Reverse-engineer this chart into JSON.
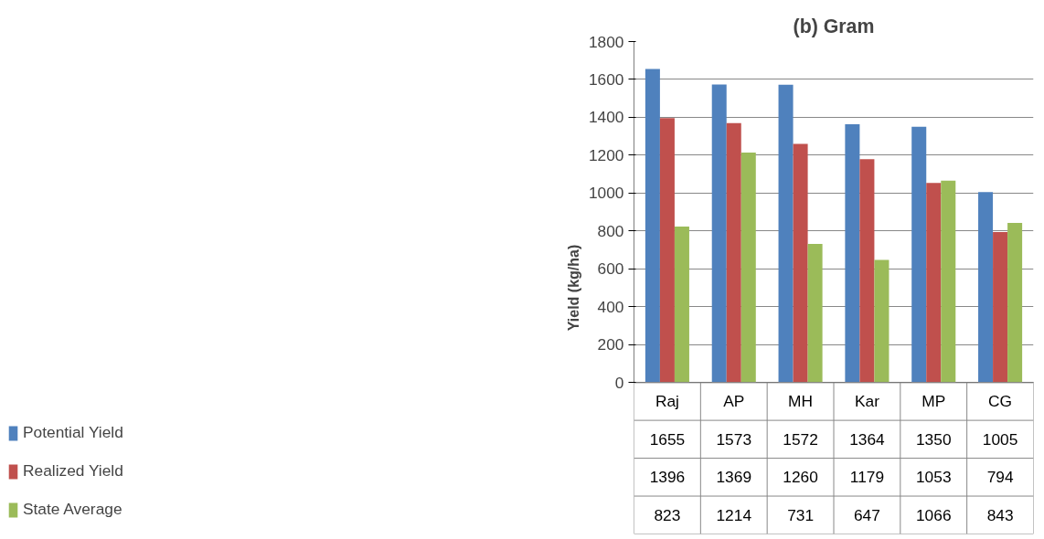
{
  "chart_data": {
    "type": "bar",
    "title": "(b) Gram",
    "ylabel": "Yield (kg/ha)",
    "categories": [
      "Raj",
      "AP",
      "MH",
      "Kar",
      "MP",
      "CG"
    ],
    "series": [
      {
        "name": "Potential Yield",
        "color": "#4f81bd",
        "values": [
          1655,
          1573,
          1572,
          1364,
          1350,
          1005
        ]
      },
      {
        "name": "Realized Yield",
        "color": "#c0504d",
        "values": [
          1396,
          1369,
          1260,
          1179,
          1053,
          794
        ]
      },
      {
        "name": "State Average",
        "color": "#9bbb59",
        "values": [
          823,
          1214,
          731,
          647,
          1066,
          843
        ]
      }
    ],
    "ylim": [
      0,
      1800
    ],
    "yticks": [
      0,
      200,
      400,
      600,
      800,
      1000,
      1200,
      1400,
      1600,
      1800
    ],
    "grid": "y",
    "legend": "bottom left",
    "data_labels": true
  }
}
